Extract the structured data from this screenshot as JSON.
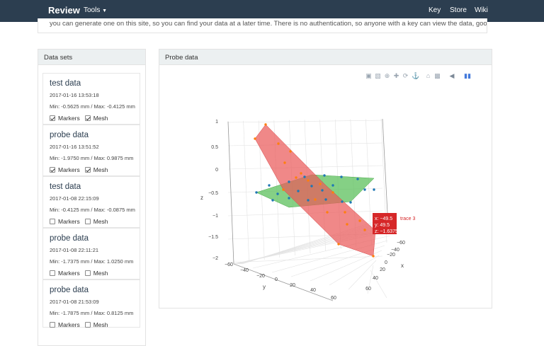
{
  "navbar": {
    "brand": "Review",
    "tools_label": "Tools",
    "links": [
      "Key",
      "Store",
      "Wiki"
    ]
  },
  "banner_text": "you can generate one on this site, so you can find your data at a later time. There is no authentication, so anyone with a key can view the data, good for sharing!",
  "sidebar": {
    "heading": "Data sets",
    "items": [
      {
        "title": "test data",
        "date": "2017-01-16 13:53:18",
        "range": "Min: -0.5625 mm / Max: -0.4125 mm",
        "markers_label": "Markers",
        "mesh_label": "Mesh",
        "markers_checked": true,
        "mesh_checked": true
      },
      {
        "title": "probe data",
        "date": "2017-01-16 13:51:52",
        "range": "Min: -1.9750 mm / Max: 0.9875 mm",
        "markers_label": "Markers",
        "mesh_label": "Mesh",
        "markers_checked": true,
        "mesh_checked": true
      },
      {
        "title": "test data",
        "date": "2017-01-08 22:15:09",
        "range": "Min: -0.4125 mm / Max: -0.0875 mm",
        "markers_label": "Markers",
        "mesh_label": "Mesh",
        "markers_checked": false,
        "mesh_checked": false
      },
      {
        "title": "probe data",
        "date": "2017-01-08 22:11:21",
        "range": "Min: -1.7375 mm / Max: 1.0250 mm",
        "markers_label": "Markers",
        "mesh_label": "Mesh",
        "markers_checked": false,
        "mesh_checked": false
      },
      {
        "title": "probe data",
        "date": "2017-01-08 21:53:09",
        "range": "Min: -1.7875 mm / Max: 0.8125 mm",
        "markers_label": "Markers",
        "mesh_label": "Mesh",
        "markers_checked": false,
        "mesh_checked": false
      }
    ]
  },
  "main": {
    "heading": "Probe data",
    "modebar_icons": [
      "camera-icon",
      "save-icon",
      "zoom-icon",
      "pan-icon",
      "orbit-icon",
      "turntable-icon",
      "home-icon",
      "reset-icon",
      "hover-icon",
      "spike-icon",
      "plotly-logo-icon"
    ]
  },
  "chart_data": {
    "type": "surface3d",
    "title": "",
    "xlabel": "x",
    "ylabel": "y",
    "zlabel": "z",
    "x_ticks": [
      "−60",
      "−40",
      "−20",
      "0",
      "20",
      "40",
      "60"
    ],
    "y_ticks": [
      "−60",
      "−40",
      "−20",
      "0",
      "20",
      "40",
      "60"
    ],
    "z_ticks": [
      "1",
      "0.5",
      "0",
      "−0.5",
      "−1",
      "−1.5",
      "−2"
    ],
    "xlim": [
      -60,
      60
    ],
    "ylim": [
      -60,
      60
    ],
    "zlim": [
      -2,
      1
    ],
    "colors": {
      "green_mesh": "#5cc05c",
      "red_mesh": "#ea5a5a",
      "blue_marker": "#1f77b4",
      "orange_marker": "#ff7f0e",
      "tooltip": "#d62728"
    },
    "tooltip": {
      "x": "x: −49.5",
      "y": "y: 49.5",
      "z": "z: −1.6375",
      "trace": "trace 3"
    }
  }
}
